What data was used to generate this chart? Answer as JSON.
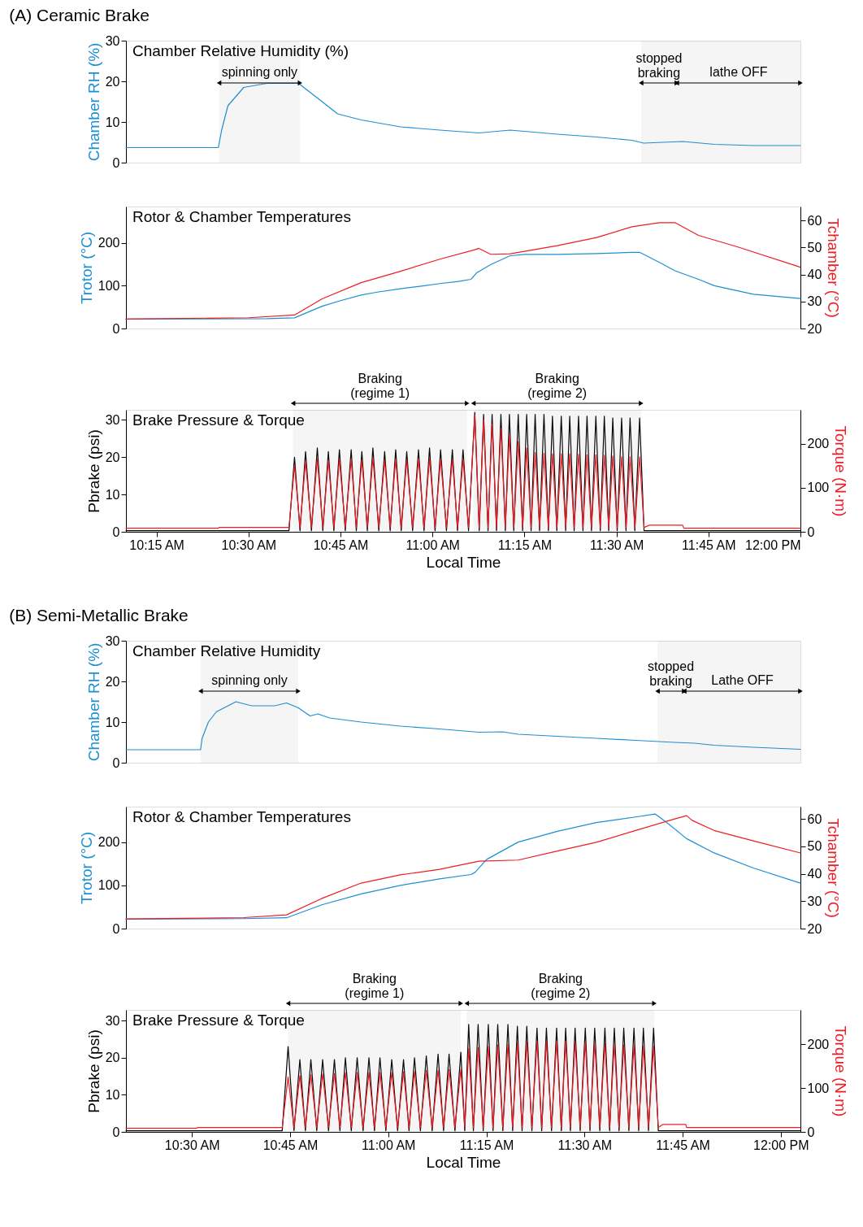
{
  "chart_data": [
    {
      "type": "line",
      "title": "(A) Ceramic Brake",
      "subtitle": "Chamber Relative Humidity (%)",
      "ylabel": "Chamber RH (%)",
      "xlim": [
        10.1669,
        12.0
      ],
      "ylim": [
        0,
        30
      ],
      "yticks": [
        0,
        10,
        20,
        30
      ],
      "tick_labels": "y",
      "series": [
        {
          "color": "#1b8fd2",
          "x": [
            10.167,
            10.418,
            10.427,
            10.444,
            10.487,
            10.55,
            10.636,
            10.7,
            10.742,
            10.806,
            10.913,
            11.02,
            11.126,
            11.211,
            11.339,
            11.446,
            11.542,
            11.574,
            11.68,
            11.766,
            11.872,
            12.0
          ],
          "values": [
            3.7,
            3.7,
            8,
            14,
            18.5,
            19.5,
            19.5,
            15,
            12,
            10.5,
            8.8,
            8,
            7.3,
            8,
            7,
            6.3,
            5.5,
            4.8,
            5.2,
            4.5,
            4.2,
            4.2
          ]
        }
      ],
      "bands": [
        {
          "axis": "x",
          "from": 10.42,
          "to": 10.64,
          "label": "spinning only"
        },
        {
          "axis": "x",
          "from": 11.567,
          "to": 11.664,
          "label": "stopped\nbraking"
        },
        {
          "axis": "x",
          "from": 11.664,
          "to": 12.0,
          "label": "lathe OFF"
        }
      ]
    },
    {
      "type": "line",
      "subtitle": "Rotor & Chamber Temperatures",
      "ylabel": "Trotor (°C)",
      "y2label": "Tchamber (°C)",
      "xlim": [
        10.1669,
        12.0
      ],
      "ylim": [
        0,
        285
      ],
      "yticks": [
        0,
        100,
        200
      ],
      "y2lim": [
        20,
        65.2
      ],
      "y2ticks": [
        20,
        30,
        40,
        50,
        60
      ],
      "tick_labels": "y",
      "series": [
        {
          "color": "#1b8fd2",
          "x": [
            10.167,
            10.55,
            10.625,
            10.7,
            10.75,
            10.806,
            10.85,
            10.913,
            10.97,
            11.02,
            11.07,
            11.105,
            11.12,
            11.16,
            11.211,
            11.25,
            11.339,
            11.446,
            11.542,
            11.563,
            11.616,
            11.659,
            11.723,
            11.766,
            11.872,
            12.0
          ],
          "values": [
            22,
            23,
            25,
            52,
            65,
            78,
            85,
            93,
            99,
            105,
            110,
            115,
            130,
            150,
            170,
            173,
            173,
            175,
            178,
            178,
            155,
            135,
            115,
            100,
            80,
            70
          ]
        },
        {
          "color": "#ee1c25",
          "axis": "y2",
          "x": [
            10.167,
            10.5,
            10.625,
            10.7,
            10.806,
            10.913,
            11.02,
            11.115,
            11.126,
            11.158,
            11.211,
            11.339,
            11.446,
            11.542,
            11.616,
            11.66,
            11.723,
            11.83,
            12.0
          ],
          "values": [
            23.5,
            24,
            25,
            31,
            37,
            41.2,
            45.7,
            49.2,
            49.7,
            47.5,
            47.7,
            50.7,
            53.7,
            57.7,
            59.2,
            59.2,
            54.5,
            50.2,
            42.7
          ]
        }
      ]
    },
    {
      "type": "line",
      "subtitle": "Brake Pressure & Torque",
      "xlabel": "Local Time",
      "ylabel": "Pbrake (psi)",
      "y2label": "Torque (N·m)",
      "xlim": [
        10.1669,
        12.0
      ],
      "ylim": [
        0,
        32.7
      ],
      "yticks": [
        0,
        10,
        20,
        30
      ],
      "y2lim": [
        0,
        277
      ],
      "y2ticks": [
        0,
        100,
        200
      ],
      "xticks": [
        {
          "value": 10.25,
          "label": "10:15 AM"
        },
        {
          "value": 10.5,
          "label": "10:30 AM"
        },
        {
          "value": 10.75,
          "label": "10:45 AM"
        },
        {
          "value": 11.0,
          "label": "11:00 AM"
        },
        {
          "value": 11.25,
          "label": "11:15 AM"
        },
        {
          "value": 11.5,
          "label": "11:30 AM"
        },
        {
          "value": 11.75,
          "label": "11:45 AM"
        },
        {
          "value": 12.0,
          "label": "12:00 PM"
        }
      ],
      "x": [
        10.167,
        10.418,
        10.42,
        10.61,
        10.625,
        10.64,
        10.655,
        10.671,
        10.687,
        10.702,
        10.717,
        10.732,
        10.747,
        10.763,
        10.779,
        10.793,
        10.808,
        10.823,
        10.838,
        10.854,
        10.87,
        10.885,
        10.9,
        10.915,
        10.93,
        10.946,
        10.962,
        10.977,
        10.992,
        11.007,
        11.022,
        11.038,
        11.054,
        11.068,
        11.083,
        11.098,
        11.115,
        11.127,
        11.139,
        11.151,
        11.162,
        11.174,
        11.186,
        11.198,
        11.209,
        11.221,
        11.233,
        11.245,
        11.256,
        11.268,
        11.279,
        11.291,
        11.303,
        11.315,
        11.326,
        11.338,
        11.35,
        11.362,
        11.373,
        11.385,
        11.397,
        11.409,
        11.42,
        11.432,
        11.444,
        11.456,
        11.467,
        11.479,
        11.49,
        11.502,
        11.514,
        11.526,
        11.537,
        11.55,
        11.563,
        11.575,
        11.59,
        11.68,
        11.683,
        12.0
      ],
      "series": [
        {
          "color": "#000000",
          "values": [
            0.3,
            0.3,
            0.3,
            0.3,
            20,
            0.3,
            21.5,
            0.3,
            22.5,
            0.3,
            21.5,
            0.3,
            22,
            0.3,
            22,
            0.3,
            21.5,
            0.3,
            22.5,
            0.3,
            21.5,
            0.3,
            22,
            0.3,
            21.5,
            0.3,
            22,
            0.3,
            22.5,
            0.3,
            22,
            0.3,
            22,
            0.3,
            22,
            0.3,
            32,
            0.3,
            31.5,
            0.3,
            31.5,
            0.3,
            31.5,
            0.3,
            31.5,
            0.3,
            31.5,
            0.3,
            31.5,
            0.3,
            31.5,
            0.3,
            31.5,
            0.3,
            31,
            0.3,
            31,
            0.3,
            31,
            0.3,
            31,
            0.3,
            31,
            0.3,
            31,
            0.3,
            31,
            0.3,
            30.5,
            0.3,
            30.5,
            0.3,
            30.5,
            0.3,
            30.5,
            0.3,
            0.3,
            0.3,
            0.3,
            0.3
          ]
        },
        {
          "color": "#ee1c25",
          "axis": "y2",
          "values": [
            8,
            8,
            10,
            10,
            150,
            10,
            160,
            10,
            165,
            10,
            162,
            10,
            165,
            10,
            165,
            10,
            163,
            10,
            167,
            10,
            163,
            10,
            165,
            10,
            163,
            10,
            165,
            10,
            167,
            10,
            165,
            10,
            165,
            10,
            165,
            10,
            265,
            10,
            255,
            10,
            245,
            10,
            235,
            10,
            220,
            10,
            205,
            10,
            190,
            10,
            180,
            10,
            178,
            10,
            177,
            10,
            177,
            10,
            177,
            10,
            176,
            10,
            175,
            10,
            175,
            10,
            174,
            10,
            172,
            10,
            170,
            10,
            170,
            10,
            170,
            10,
            15,
            15,
            8,
            8
          ]
        }
      ],
      "bands": [
        {
          "axis": "x",
          "from": 10.621,
          "to": 11.094,
          "label": "Braking\n(regime 1)"
        },
        {
          "axis": "x",
          "from": 11.111,
          "to": 11.567,
          "label": "Braking\n(regime 2)"
        }
      ]
    },
    {
      "type": "line",
      "title": "(B) Semi-Metallic Brake",
      "subtitle": "Chamber Relative Humidity",
      "ylabel": "Chamber RH (%)",
      "xlim": [
        10.332,
        12.05
      ],
      "ylim": [
        0,
        30
      ],
      "yticks": [
        0,
        10,
        20,
        30
      ],
      "tick_labels": "y",
      "series": [
        {
          "color": "#1b8fd2",
          "x": [
            10.332,
            10.522,
            10.526,
            10.542,
            10.562,
            10.612,
            10.652,
            10.711,
            10.741,
            10.771,
            10.801,
            10.821,
            10.851,
            10.931,
            11.031,
            11.131,
            11.231,
            11.291,
            11.331,
            11.431,
            11.53,
            11.63,
            11.73,
            11.78,
            11.83,
            11.93,
            12.05
          ],
          "values": [
            3.2,
            3.2,
            6,
            10,
            12.5,
            15,
            14,
            14,
            14.7,
            13.5,
            11.5,
            12,
            11,
            10,
            9,
            8.3,
            7.5,
            7.6,
            7,
            6.5,
            6,
            5.5,
            5,
            4.8,
            4.3,
            3.8,
            3.3
          ]
        }
      ],
      "bands": [
        {
          "axis": "x",
          "from": 10.522,
          "to": 10.771,
          "label": "spinning only"
        },
        {
          "axis": "x",
          "from": 11.686,
          "to": 11.754,
          "label": "stopped\nbraking"
        },
        {
          "axis": "x",
          "from": 11.754,
          "to": 12.05,
          "label": "Lathe OFF"
        }
      ]
    },
    {
      "type": "line",
      "subtitle": "Rotor & Chamber Temperatures",
      "ylabel": "Trotor (°C)",
      "y2label": "Tchamber (°C)",
      "xlim": [
        10.332,
        12.05
      ],
      "ylim": [
        0,
        282
      ],
      "yticks": [
        0,
        100,
        200
      ],
      "y2lim": [
        20,
        64.5
      ],
      "y2ticks": [
        20,
        30,
        40,
        50,
        60
      ],
      "tick_labels": "y",
      "series": [
        {
          "color": "#1b8fd2",
          "x": [
            10.332,
            10.632,
            10.741,
            10.831,
            10.931,
            11.031,
            11.131,
            11.211,
            11.221,
            11.251,
            11.331,
            11.431,
            11.53,
            11.63,
            11.68,
            11.71,
            11.76,
            11.83,
            11.93,
            12.05
          ],
          "values": [
            22,
            23,
            25,
            55,
            80,
            100,
            115,
            125,
            130,
            160,
            200,
            225,
            245,
            258,
            265,
            245,
            208,
            175,
            140,
            105
          ]
        },
        {
          "color": "#ee1c25",
          "axis": "y2",
          "x": [
            10.332,
            10.632,
            10.741,
            10.831,
            10.931,
            11.031,
            11.131,
            11.231,
            11.331,
            11.431,
            11.53,
            11.63,
            11.73,
            11.76,
            11.774,
            11.83,
            11.93,
            12.05
          ],
          "values": [
            23.5,
            24,
            25,
            31,
            36.6,
            39.6,
            41.6,
            44.6,
            45,
            48.3,
            51.5,
            55.8,
            60,
            61.2,
            59.5,
            55.8,
            52,
            47.6
          ]
        }
      ]
    },
    {
      "type": "line",
      "subtitle": "Brake Pressure & Torque",
      "xlabel": "Local Time",
      "ylabel": "Pbrake (psi)",
      "y2label": "Torque (N·m)",
      "xlim": [
        10.332,
        12.05
      ],
      "ylim": [
        0,
        32.9
      ],
      "yticks": [
        0,
        10,
        20,
        30
      ],
      "y2lim": [
        0,
        278
      ],
      "y2ticks": [
        0,
        100,
        200
      ],
      "xticks": [
        {
          "value": 10.5,
          "label": "10:30 AM"
        },
        {
          "value": 10.75,
          "label": "10:45 AM"
        },
        {
          "value": 11.0,
          "label": "11:00 AM"
        },
        {
          "value": 11.25,
          "label": "11:15 AM"
        },
        {
          "value": 11.5,
          "label": "11:30 AM"
        },
        {
          "value": 11.75,
          "label": "11:45 AM"
        },
        {
          "value": 12.0,
          "label": "12:00 PM"
        }
      ],
      "x": [
        10.332,
        10.512,
        10.514,
        10.73,
        10.745,
        10.76,
        10.775,
        10.789,
        10.803,
        10.818,
        10.833,
        10.848,
        10.863,
        10.877,
        10.891,
        10.906,
        10.921,
        10.936,
        10.951,
        10.965,
        10.979,
        10.994,
        11.009,
        11.024,
        11.039,
        11.053,
        11.067,
        11.082,
        11.097,
        11.112,
        11.127,
        11.141,
        11.155,
        11.17,
        11.185,
        11.195,
        11.205,
        11.217,
        11.229,
        11.242,
        11.255,
        11.267,
        11.279,
        11.292,
        11.305,
        11.317,
        11.329,
        11.341,
        11.353,
        11.366,
        11.379,
        11.391,
        11.403,
        11.416,
        11.429,
        11.441,
        11.452,
        11.464,
        11.476,
        11.489,
        11.502,
        11.514,
        11.526,
        11.539,
        11.552,
        11.564,
        11.576,
        11.588,
        11.6,
        11.613,
        11.626,
        11.638,
        11.65,
        11.663,
        11.676,
        11.688,
        11.7,
        11.758,
        11.76,
        12.05
      ],
      "series": [
        {
          "color": "#000000",
          "values": [
            0.3,
            0.3,
            0.3,
            0.3,
            23,
            0.3,
            19.5,
            0.3,
            19.5,
            0.3,
            19.5,
            0.3,
            19.5,
            0.3,
            20,
            0.3,
            20,
            0.3,
            20,
            0.3,
            20,
            0.3,
            19.5,
            0.3,
            19.5,
            0.3,
            20,
            0.3,
            20.5,
            0.3,
            21,
            0.3,
            21,
            0.3,
            21.5,
            0.3,
            29,
            0.3,
            29,
            0.3,
            29,
            0.3,
            29,
            0.3,
            29,
            0.3,
            28.5,
            0.3,
            28.5,
            0.3,
            28,
            0.3,
            28,
            0.3,
            28,
            0.3,
            28,
            0.3,
            28,
            0.3,
            28,
            0.3,
            28,
            0.3,
            28,
            0.3,
            28,
            0.3,
            28,
            0.3,
            28,
            0.3,
            28,
            0.3,
            28,
            0.3,
            0.3,
            0.3,
            0.3,
            0.3
          ]
        },
        {
          "color": "#ee1c25",
          "axis": "y2",
          "values": [
            8,
            8,
            10,
            10,
            125,
            10,
            128,
            10,
            130,
            10,
            132,
            10,
            133,
            10,
            135,
            10,
            135,
            10,
            135,
            10,
            135,
            10,
            135,
            10,
            137,
            10,
            138,
            10,
            140,
            10,
            140,
            10,
            142,
            10,
            143,
            10,
            190,
            10,
            192,
            10,
            195,
            10,
            198,
            10,
            200,
            10,
            203,
            10,
            205,
            10,
            207,
            10,
            207,
            10,
            207,
            10,
            207,
            10,
            205,
            10,
            205,
            10,
            203,
            10,
            202,
            10,
            200,
            10,
            198,
            10,
            197,
            10,
            196,
            10,
            195,
            10,
            17,
            17,
            10,
            10
          ]
        }
      ],
      "bands": [
        {
          "axis": "x",
          "from": 10.745,
          "to": 11.185,
          "label": "Braking\n(regime 1)"
        },
        {
          "axis": "x",
          "from": 11.2,
          "to": 11.678,
          "label": "Braking\n(regime 2)"
        }
      ]
    }
  ]
}
